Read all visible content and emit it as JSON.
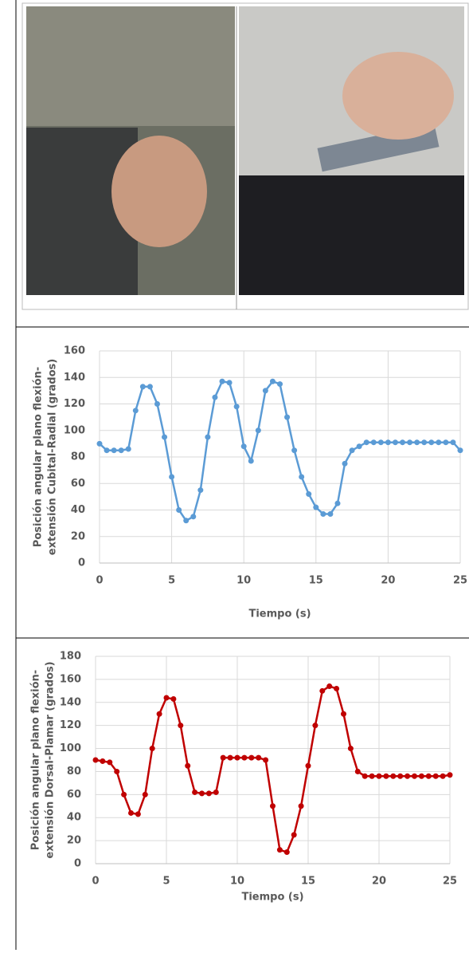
{
  "chart_data": [
    {
      "type": "line",
      "xlabel": "Tiempo (s)",
      "ylabel": [
        "Posición angular plano flexión-",
        "extensión Cubital-Radial (grados)"
      ],
      "x": [
        0,
        0.5,
        1,
        1.5,
        2,
        2.5,
        3,
        3.5,
        4,
        4.5,
        5,
        5.5,
        6,
        6.5,
        7,
        7.5,
        8,
        8.5,
        9,
        9.5,
        10,
        10.5,
        11,
        11.5,
        12,
        12.5,
        13,
        13.5,
        14,
        14.5,
        15,
        15.5,
        16,
        16.5,
        17,
        17.5,
        18,
        18.5,
        19,
        19.5,
        20,
        20.5,
        21,
        21.5,
        22,
        22.5,
        23,
        23.5,
        24,
        24.5,
        25
      ],
      "values": [
        90,
        85,
        85,
        85,
        86,
        115,
        133,
        133,
        120,
        95,
        65,
        40,
        32,
        35,
        55,
        95,
        125,
        137,
        136,
        118,
        88,
        77,
        100,
        130,
        137,
        135,
        110,
        85,
        65,
        52,
        42,
        37,
        37,
        45,
        75,
        85,
        88,
        91,
        91,
        91,
        91,
        91,
        91,
        91,
        91,
        91,
        91,
        91,
        91,
        91,
        85
      ],
      "color": "#5b9bd5",
      "xlim": [
        0,
        25
      ],
      "xticks": [
        0,
        5,
        10,
        15,
        20,
        25
      ],
      "ylim": [
        0,
        160
      ],
      "yticks": [
        0,
        20,
        40,
        60,
        80,
        100,
        120,
        140,
        160
      ],
      "grid": true
    },
    {
      "type": "line",
      "xlabel": "Tiempo (s)",
      "ylabel": [
        "Posición angular plano flexión-",
        "extensión Dorsal-Plamar (grados)"
      ],
      "x": [
        0,
        0.5,
        1,
        1.5,
        2,
        2.5,
        3,
        3.5,
        4,
        4.5,
        5,
        5.5,
        6,
        6.5,
        7,
        7.5,
        8,
        8.5,
        9,
        9.5,
        10,
        10.5,
        11,
        11.5,
        12,
        12.5,
        13,
        13.5,
        14,
        14.5,
        15,
        15.5,
        16,
        16.5,
        17,
        17.5,
        18,
        18.5,
        19,
        19.5,
        20,
        20.5,
        21,
        21.5,
        22,
        22.5,
        23,
        23.5,
        24,
        24.5,
        25
      ],
      "values": [
        90,
        89,
        88,
        80,
        60,
        44,
        43,
        60,
        100,
        130,
        144,
        143,
        120,
        85,
        62,
        61,
        61,
        62,
        92,
        92,
        92,
        92,
        92,
        92,
        90,
        50,
        12,
        10,
        25,
        50,
        85,
        120,
        150,
        154,
        152,
        130,
        100,
        80,
        76,
        76,
        76,
        76,
        76,
        76,
        76,
        76,
        76,
        76,
        76,
        76,
        77
      ],
      "color": "#c00000",
      "xlim": [
        0,
        25
      ],
      "xticks": [
        0,
        5,
        10,
        15,
        20,
        25
      ],
      "ylim": [
        0,
        180
      ],
      "yticks": [
        0,
        20,
        40,
        60,
        80,
        100,
        120,
        140,
        160,
        180
      ],
      "grid": true
    }
  ]
}
